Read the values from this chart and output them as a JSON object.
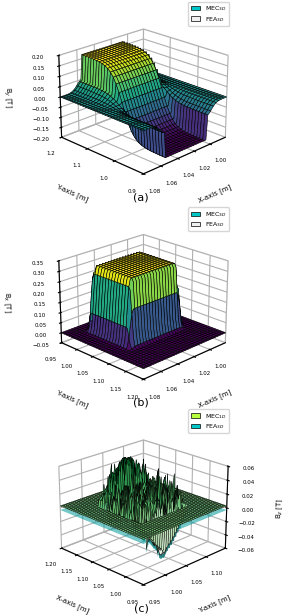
{
  "plot_a": {
    "zlabel": "B$_y$ [T]",
    "xlabel": "X-axis [m]",
    "ylabel": "Y-axis [m]",
    "zlim": [
      -0.2,
      0.2
    ],
    "zticks": [
      -0.2,
      -0.15,
      -0.1,
      -0.05,
      0,
      0.05,
      0.1,
      0.15,
      0.2
    ],
    "xlim": [
      0.98,
      1.08
    ],
    "ylim": [
      0.9,
      1.2
    ],
    "xticks": [
      1.0,
      1.02,
      1.04,
      1.06,
      1.08
    ],
    "yticks": [
      0.9,
      1.0,
      1.1,
      1.2
    ],
    "elev": 22,
    "azim": -135,
    "legend": [
      "MEC$_{3D}$",
      "FEA$_{3D}$"
    ],
    "legend_colors": [
      "#00c8c8",
      "#f0f0f0"
    ],
    "subtitle": "(a)",
    "cmap": "plasma"
  },
  "plot_b": {
    "zlabel": "B$_x$ [T]",
    "xlabel": "X-axis [m]",
    "ylabel": "Y-axis [m]",
    "zlim": [
      -0.05,
      0.35
    ],
    "zticks": [
      -0.05,
      0,
      0.05,
      0.1,
      0.15,
      0.2,
      0.25,
      0.3,
      0.35
    ],
    "xlim": [
      0.98,
      1.08
    ],
    "ylim": [
      0.95,
      1.2
    ],
    "xticks": [
      1.0,
      1.02,
      1.04,
      1.06,
      1.08
    ],
    "yticks": [
      0.95,
      1.0,
      1.05,
      1.1,
      1.15,
      1.2
    ],
    "elev": 22,
    "azim": -135,
    "legend": [
      "MEC$_{3D}$",
      "FEA$_{3D}$"
    ],
    "legend_colors": [
      "#00c8c8",
      "#f0f0f0"
    ],
    "subtitle": "(b)",
    "cmap": "plasma"
  },
  "plot_c": {
    "zlabel": "B$_z$ [T]",
    "xlabel": "X-axis [m]",
    "ylabel": "Y-axis [m]",
    "zlim": [
      -0.06,
      0.06
    ],
    "zticks": [
      -0.06,
      -0.04,
      -0.02,
      0,
      0.02,
      0.04,
      0.06
    ],
    "xlim": [
      0.95,
      1.2
    ],
    "ylim": [
      0.95,
      1.15
    ],
    "xticks": [
      0.95,
      1.0,
      1.05,
      1.1,
      1.15,
      1.2
    ],
    "yticks": [
      0.95,
      1.0,
      1.05,
      1.1
    ],
    "elev": 22,
    "azim": -45,
    "legend": [
      "MEC$_{1D}$",
      "FEA$_{3D}$"
    ],
    "legend_colors": [
      "#b8ff40",
      "#00c8c8"
    ],
    "subtitle": "(c)",
    "cmap": "Greens"
  }
}
